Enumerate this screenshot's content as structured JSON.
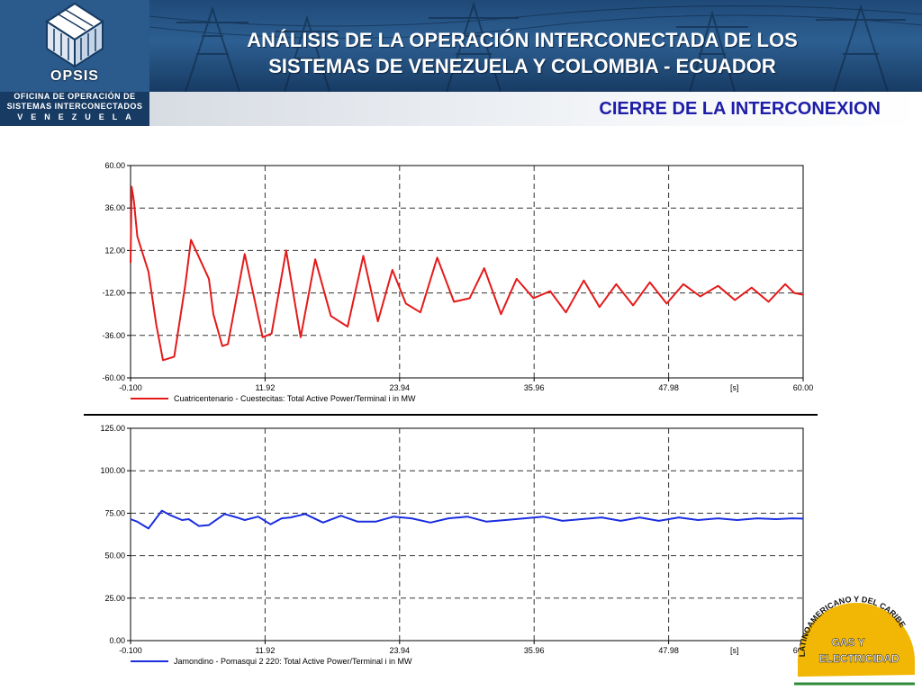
{
  "header": {
    "title_line1": "ANÁLISIS DE LA OPERACIÓN INTERCONECTADA  DE LOS",
    "title_line2": "SISTEMAS DE VENEZUELA Y COLOMBIA - ECUADOR",
    "subtitle": "CIERRE DE LA INTERCONEXION"
  },
  "logo": {
    "word": "OPSIS",
    "line1": "OFICINA DE OPERACIÓN DE",
    "line2": "SISTEMAS INTERCONECTADOS",
    "line3": "VENEZUELA"
  },
  "badge": {
    "arc_text": "LATINOAMERICANO Y DEL CARIBE",
    "line1": "GAS Y",
    "line2": "ELECTRICIDAD"
  },
  "colors": {
    "banner": "#2b5a8c",
    "subtitle": "#1d1da8",
    "series_top": "#e41a1a",
    "series_bottom": "#1a2ee0",
    "badge": "#f2b705"
  },
  "chart_data": [
    {
      "type": "line",
      "xlim": [
        -0.1,
        60.0
      ],
      "ylim": [
        -60.0,
        60.0
      ],
      "grid": true,
      "x_ticks": [
        "-0.100",
        "11.92",
        "23.94",
        "35.96",
        "47.98",
        "60.00"
      ],
      "x_tick_values": [
        -0.1,
        11.92,
        23.94,
        35.96,
        47.98,
        60.0
      ],
      "x_unit_label": "[s]",
      "y_ticks": [
        "60.00",
        "36.00",
        "12.00",
        "-12.00",
        "-36.00",
        "-60.00"
      ],
      "y_tick_values": [
        60,
        36,
        12,
        -12,
        -36,
        -60
      ],
      "series": [
        {
          "name": "Cuatricentenario - Cuestecitas: Total Active Power/Terminal i in MW",
          "color": "#e41a1a",
          "x": [
            -0.1,
            0.0,
            0.2,
            0.5,
            0.8,
            1.5,
            2.2,
            2.8,
            3.3,
            3.8,
            4.8,
            5.3,
            6.9,
            7.3,
            8.1,
            8.6,
            10.1,
            11.7,
            12.5,
            13.8,
            15.1,
            16.4,
            17.8,
            19.3,
            20.7,
            22.0,
            23.3,
            24.5,
            25.8,
            27.3,
            28.8,
            30.2,
            31.5,
            33.0,
            34.4,
            35.9,
            37.4,
            38.8,
            40.4,
            41.8,
            43.3,
            44.8,
            46.3,
            47.8,
            49.3,
            50.8,
            52.4,
            53.9,
            55.4,
            56.9,
            58.4,
            59.2,
            60.0
          ],
          "y": [
            5,
            48,
            40,
            20,
            14,
            0,
            -30,
            -50,
            -49,
            -48,
            -7,
            18,
            -4,
            -24,
            -42,
            -41,
            10,
            -37,
            -35,
            12,
            -37,
            7,
            -25,
            -31,
            9,
            -28,
            1,
            -18,
            -23,
            8,
            -17,
            -15,
            2,
            -24,
            -4,
            -15,
            -11,
            -23,
            -5,
            -20,
            -7,
            -19,
            -6,
            -18,
            -7,
            -14,
            -8,
            -16,
            -9,
            -17,
            -7,
            -12,
            -13
          ]
        }
      ]
    },
    {
      "type": "line",
      "xlim": [
        -0.1,
        60.0
      ],
      "ylim": [
        0.0,
        125.0
      ],
      "grid": true,
      "x_ticks": [
        "-0.100",
        "11.92",
        "23.94",
        "35.96",
        "47.98",
        "60.00"
      ],
      "x_tick_values": [
        -0.1,
        11.92,
        23.94,
        35.96,
        47.98,
        60.0
      ],
      "x_unit_label": "[s]",
      "y_ticks": [
        "125.00",
        "100.00",
        "75.00",
        "50.00",
        "25.00",
        "0.00"
      ],
      "y_tick_values": [
        125,
        100,
        75,
        50,
        25,
        0
      ],
      "series": [
        {
          "name": "Jamondino - Pomasqui 2 220: Total Active Power/Terminal i in MW",
          "color": "#1a2ee0",
          "x": [
            -0.1,
            0.5,
            1.0,
            1.5,
            2.3,
            2.7,
            3.4,
            4.5,
            5.1,
            6.0,
            6.9,
            8.3,
            9.4,
            10.1,
            11.3,
            12.4,
            13.4,
            14.2,
            15.5,
            17.1,
            18.7,
            20.2,
            21.8,
            23.4,
            25.0,
            26.7,
            28.3,
            30.0,
            31.7,
            33.4,
            35.1,
            36.8,
            38.5,
            40.2,
            42.0,
            43.7,
            45.4,
            47.1,
            48.9,
            50.6,
            52.4,
            54.1,
            55.9,
            57.6,
            59.0,
            60.0
          ],
          "y": [
            71.5,
            70,
            68,
            66,
            73,
            76.5,
            74,
            71,
            71.5,
            67.5,
            68,
            74.5,
            72.5,
            71,
            73,
            68.5,
            72,
            72.5,
            74.5,
            69.5,
            73.5,
            70,
            70,
            73,
            72,
            69.5,
            72,
            73,
            70,
            71,
            72,
            73,
            70.5,
            71.5,
            72.5,
            70.5,
            72.5,
            70.5,
            72.5,
            71,
            72,
            71,
            72,
            71.5,
            72,
            71.8
          ]
        }
      ]
    }
  ]
}
